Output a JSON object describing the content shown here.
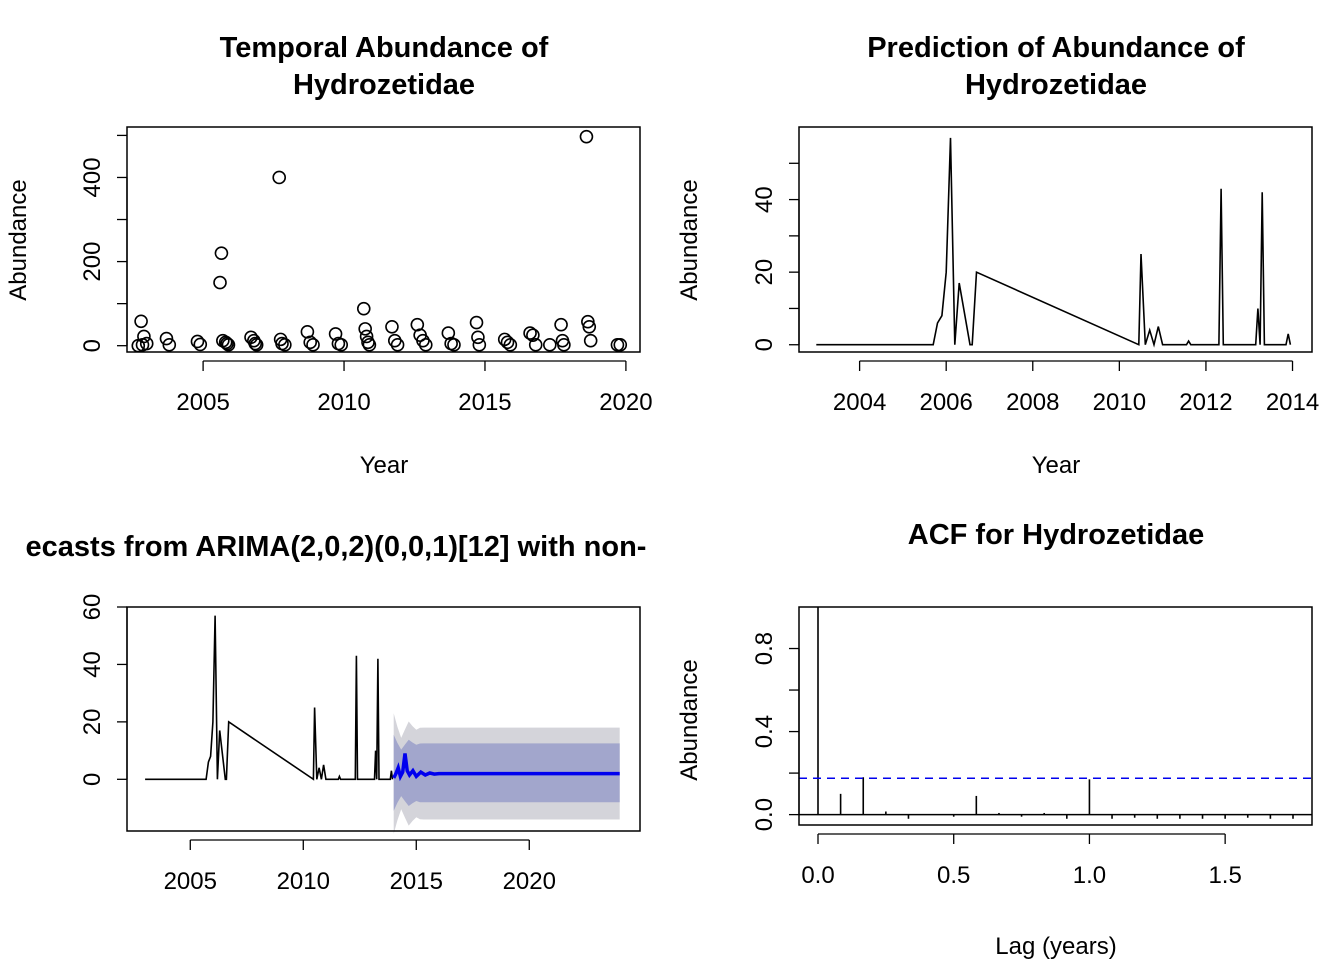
{
  "panels": {
    "p1": {
      "title_line1": "Temporal Abundance of",
      "title_line2": "Hydrozetidae",
      "xlabel": "Year",
      "ylabel": "Abundance"
    },
    "p2": {
      "title_line1": "Prediction of Abundance of",
      "title_line2": "Hydrozetidae",
      "xlabel": "Year",
      "ylabel": "Abundance"
    },
    "p3": {
      "title": "ecasts from ARIMA(2,0,2)(0,0,1)[12] with non-",
      "xlabel": "",
      "ylabel": ""
    },
    "p4": {
      "title": "ACF for Hydrozetidae",
      "xlabel": "Lag (years)",
      "ylabel": "Abundance"
    }
  },
  "colors": {
    "line": "#000000",
    "forecast": "#0000ee",
    "pi80": "#a2a6cc",
    "pi95": "#d4d4da",
    "acf_ci": "#0000ee"
  },
  "chart_data": [
    {
      "type": "scatter",
      "title": "Temporal Abundance of Hydrozetidae",
      "xlabel": "Year",
      "ylabel": "Abundance",
      "xlim": [
        2002.3,
        2020.5
      ],
      "ylim": [
        -15,
        520
      ],
      "xticks": [
        2005,
        2010,
        2015,
        2020
      ],
      "yticks": [
        0,
        200,
        400
      ],
      "marker": "open-circle",
      "x": [
        2002.7,
        2002.8,
        2002.9,
        2003.0,
        2002.85,
        2003.7,
        2003.8,
        2004.8,
        2004.9,
        2005.6,
        2005.65,
        2005.7,
        2005.8,
        2005.85,
        2005.9,
        2006.7,
        2006.8,
        2006.85,
        2006.9,
        2007.7,
        2007.75,
        2007.8,
        2007.9,
        2008.7,
        2008.8,
        2008.9,
        2009.7,
        2009.8,
        2009.9,
        2010.7,
        2010.75,
        2010.8,
        2010.85,
        2010.9,
        2011.7,
        2011.8,
        2011.9,
        2012.6,
        2012.7,
        2012.8,
        2012.9,
        2013.7,
        2013.8,
        2013.9,
        2014.7,
        2014.75,
        2014.8,
        2015.7,
        2015.8,
        2015.9,
        2016.6,
        2016.7,
        2016.8,
        2017.3,
        2017.7,
        2017.75,
        2017.8,
        2018.6,
        2018.65,
        2018.7,
        2018.75,
        2019.7,
        2019.8
      ],
      "y": [
        0,
        58,
        22,
        5,
        2,
        17,
        2,
        10,
        3,
        150,
        220,
        12,
        8,
        5,
        2,
        20,
        12,
        5,
        2,
        400,
        15,
        5,
        2,
        33,
        8,
        2,
        28,
        5,
        2,
        88,
        40,
        22,
        8,
        2,
        45,
        12,
        2,
        50,
        25,
        12,
        2,
        30,
        5,
        2,
        55,
        20,
        2,
        15,
        8,
        2,
        30,
        25,
        2,
        2,
        50,
        12,
        2,
        497,
        57,
        45,
        12,
        2,
        2
      ]
    },
    {
      "type": "line",
      "title": "Prediction of Abundance of Hydrozetidae",
      "xlabel": "Year",
      "ylabel": "Abundance",
      "xlim": [
        2002.6,
        2014.45
      ],
      "ylim": [
        -2,
        60
      ],
      "xticks": [
        2004,
        2006,
        2008,
        2010,
        2012,
        2014
      ],
      "yticks": [
        0,
        20,
        40
      ],
      "x": [
        2003.0,
        2005.7,
        2005.8,
        2005.9,
        2006.0,
        2006.1,
        2006.2,
        2006.3,
        2006.55,
        2006.6,
        2006.7,
        2010.45,
        2010.5,
        2010.6,
        2010.7,
        2010.8,
        2010.9,
        2011.0,
        2011.55,
        2011.6,
        2011.65,
        2012.3,
        2012.35,
        2012.4,
        2013.15,
        2013.2,
        2013.25,
        2013.3,
        2013.35,
        2013.4,
        2013.85,
        2013.9,
        2013.95
      ],
      "y": [
        0,
        0,
        6,
        8,
        20,
        57,
        0,
        17,
        0,
        0,
        20,
        0,
        25,
        0,
        4,
        0,
        5,
        0,
        0,
        1,
        0,
        0,
        43,
        0,
        0,
        10,
        0,
        42,
        0,
        0,
        0,
        3,
        0
      ]
    },
    {
      "type": "line",
      "title": "ecasts from ARIMA(2,0,2)(0,0,1)[12] with non-",
      "xlim": [
        2002.2,
        2024.9
      ],
      "ylim": [
        -18,
        60
      ],
      "xticks": [
        2005,
        2010,
        2015,
        2020
      ],
      "yticks": [
        0,
        20,
        40,
        60
      ],
      "series": [
        {
          "values_x": [
            2003.0,
            2005.7,
            2005.8,
            2005.9,
            2006.0,
            2006.1,
            2006.2,
            2006.3,
            2006.55,
            2006.6,
            2006.7,
            2010.45,
            2010.5,
            2010.6,
            2010.7,
            2010.8,
            2010.9,
            2011.0,
            2011.55,
            2011.6,
            2011.65,
            2012.3,
            2012.35,
            2012.4,
            2013.15,
            2013.2,
            2013.25,
            2013.3,
            2013.35,
            2013.4,
            2013.85,
            2013.9,
            2013.95
          ],
          "values": [
            0,
            0,
            6,
            8,
            20,
            57,
            0,
            17,
            0,
            0,
            20,
            0,
            25,
            0,
            4,
            0,
            5,
            0,
            0,
            1,
            0,
            0,
            43,
            0,
            0,
            10,
            0,
            42,
            0,
            0,
            0,
            3,
            0
          ]
        },
        {
          "values_x": [
            2014.0,
            2014.1,
            2014.2,
            2014.3,
            2014.4,
            2014.5,
            2014.6,
            2014.7,
            2014.85,
            2015.0,
            2015.2,
            2015.4,
            2015.6,
            2015.8,
            2016.0,
            2016.5,
            2017,
            2018,
            2019,
            2020,
            2021,
            2022,
            2023,
            2024.0
          ],
          "values": [
            0.5,
            2,
            4,
            1,
            2.5,
            9,
            3,
            1.5,
            3,
            1,
            2.5,
            1.5,
            2.2,
            1.8,
            2,
            2,
            2,
            2,
            2,
            2,
            2,
            2,
            2,
            2
          ]
        }
      ],
      "band80": {
        "from": 2014.0,
        "to": 2024.0,
        "lower": -8,
        "upper": 12.5
      },
      "band95": {
        "from": 2014.0,
        "to": 2024.0,
        "lower": -14,
        "upper": 18
      }
    },
    {
      "type": "bar",
      "title": "ACF for Hydrozetidae",
      "xlabel": "Lag (years)",
      "ylabel": "Abundance",
      "xlim": [
        -0.07,
        1.82
      ],
      "ylim": [
        -0.05,
        1.0
      ],
      "xticks": [
        0.0,
        0.5,
        1.0,
        1.5
      ],
      "yticks": [
        0.0,
        0.4,
        0.8
      ],
      "ytick_labels": [
        "0.0",
        "0.4",
        "0.8"
      ],
      "xtick_labels": [
        "0.0",
        "0.5",
        "1.0",
        "1.5"
      ],
      "confidence_limit": 0.175,
      "x": [
        0,
        0.0833,
        0.1667,
        0.25,
        0.3333,
        0.4167,
        0.5,
        0.5833,
        0.6667,
        0.75,
        0.8333,
        0.9167,
        1.0,
        1.0833,
        1.1667,
        1.25,
        1.3333,
        1.4167,
        1.5,
        1.5833,
        1.6667,
        1.75
      ],
      "values": [
        1.0,
        0.1,
        0.18,
        0.015,
        -0.02,
        0.003,
        -0.01,
        0.09,
        0.008,
        -0.01,
        0.008,
        -0.02,
        0.17,
        -0.02,
        -0.015,
        -0.02,
        -0.02,
        -0.02,
        -0.02,
        -0.015,
        -0.02,
        -0.02
      ]
    }
  ]
}
